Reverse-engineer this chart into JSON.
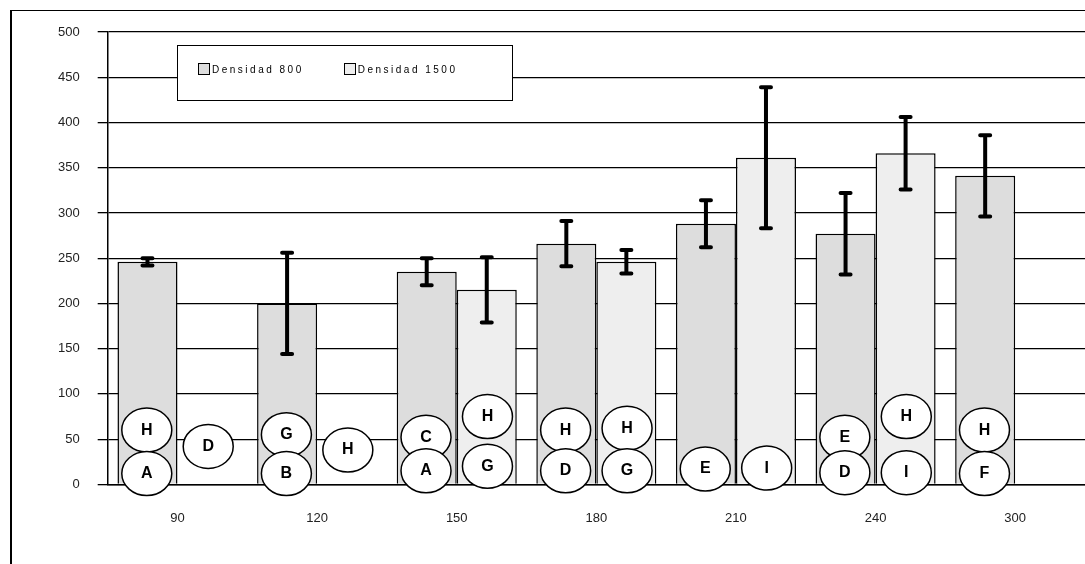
{
  "chart_data": {
    "type": "bar",
    "categories": [
      "90",
      "120",
      "150",
      "180",
      "210",
      "240",
      "300"
    ],
    "series": [
      {
        "name": "Densidad 800",
        "color": "#dddddd",
        "values": [
          246,
          200,
          235,
          266,
          288,
          277,
          341
        ],
        "errors": [
          4,
          56,
          15,
          25,
          26,
          45,
          45
        ]
      },
      {
        "name": "Densidad 1500",
        "color": "#eeeeee",
        "values": [
          null,
          null,
          215,
          246,
          361,
          366,
          null
        ],
        "errors": [
          null,
          null,
          36,
          13,
          78,
          40,
          null
        ]
      }
    ],
    "ylim": [
      0,
      500
    ],
    "yticks": [
      0,
      50,
      100,
      150,
      200,
      250,
      300,
      350,
      400,
      450,
      500
    ],
    "grid": "y",
    "legend": "top",
    "annotations": [
      {
        "text": "H",
        "x": "90",
        "y": 60
      },
      {
        "text": "D",
        "x": "90",
        "y": 42
      },
      {
        "text": "A",
        "x": "90",
        "y": 12
      },
      {
        "text": "G",
        "x": "120",
        "y": 55
      },
      {
        "text": "H",
        "x": "120",
        "y": 38
      },
      {
        "text": "B",
        "x": "120",
        "y": 12
      },
      {
        "text": "C",
        "x": "150",
        "y": 52
      },
      {
        "text": "A",
        "x": "150",
        "y": 15
      },
      {
        "text": "H",
        "x": "150",
        "y": 75
      },
      {
        "text": "G",
        "x": "150",
        "y": 20
      },
      {
        "text": "H",
        "x": "180",
        "y": 60
      },
      {
        "text": "D",
        "x": "180",
        "y": 15
      },
      {
        "text": "H",
        "x": "180",
        "y": 62
      },
      {
        "text": "G",
        "x": "180",
        "y": 15
      },
      {
        "text": "E",
        "x": "210",
        "y": 17
      },
      {
        "text": "I",
        "x": "210",
        "y": 18
      },
      {
        "text": "E",
        "x": "240",
        "y": 52
      },
      {
        "text": "D",
        "x": "240",
        "y": 13
      },
      {
        "text": "H",
        "x": "240",
        "y": 75
      },
      {
        "text": "I",
        "x": "240",
        "y": 13
      },
      {
        "text": "H",
        "x": "300",
        "y": 60
      },
      {
        "text": "F",
        "x": "300",
        "y": 12
      }
    ]
  }
}
